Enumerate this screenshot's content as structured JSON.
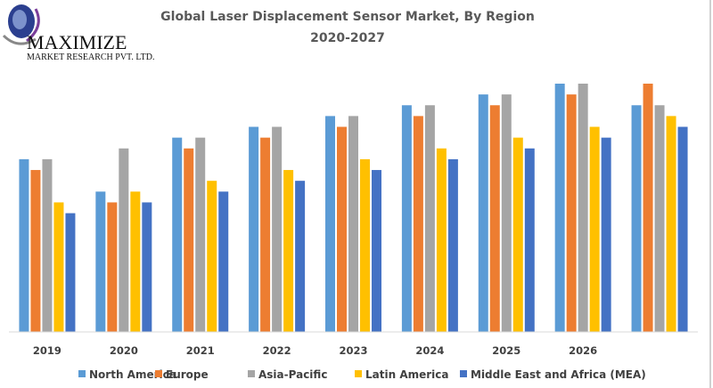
{
  "logo": {
    "line1": "MAXIMIZE",
    "line2": "MARKET RESEARCH PVT. LTD."
  },
  "chart_data": {
    "type": "bar",
    "title": "Global Laser Displacement Sensor Market, By Region",
    "subtitle": "2020-2027",
    "categories": [
      "2019",
      "2020",
      "2021",
      "2022",
      "2023",
      "2024",
      "2025",
      "2026",
      ""
    ],
    "series": [
      {
        "name": "North America",
        "color": "#5B9BD5",
        "values": [
          16,
          13,
          18,
          19,
          20,
          21,
          22,
          23,
          21
        ]
      },
      {
        "name": "Europe",
        "color": "#ED7D31",
        "values": [
          15,
          12,
          17,
          18,
          19,
          20,
          21,
          22,
          23
        ]
      },
      {
        "name": "Asia-Pacific",
        "color": "#A5A5A5",
        "values": [
          16,
          17,
          18,
          19,
          20,
          21,
          22,
          23,
          21
        ]
      },
      {
        "name": "Latin America",
        "color": "#FFC000",
        "values": [
          12,
          13,
          14,
          15,
          16,
          17,
          18,
          19,
          20
        ]
      },
      {
        "name": "Middle East and Africa (MEA)",
        "color": "#4472C4",
        "values": [
          11,
          12,
          13,
          14,
          15,
          16,
          17,
          18,
          19
        ]
      }
    ],
    "ylim": [
      0,
      23
    ],
    "grid": false,
    "y_axis_shown": false,
    "legend_position": "bottom"
  }
}
